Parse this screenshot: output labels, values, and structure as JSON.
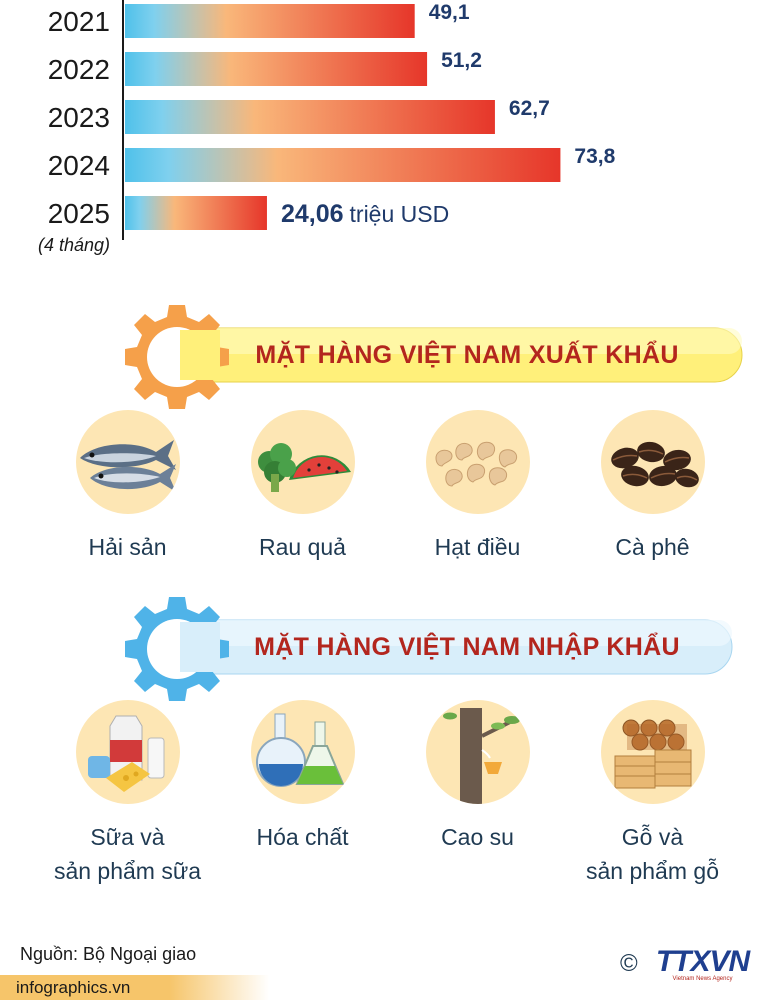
{
  "chart_data": {
    "type": "bar",
    "orientation": "horizontal",
    "categories": [
      "2021",
      "2022",
      "2023",
      "2024",
      "2025"
    ],
    "category_notes": [
      "",
      "",
      "",
      "",
      "(4 tháng)"
    ],
    "values": [
      49.1,
      51.2,
      62.7,
      73.8,
      24.06
    ],
    "value_labels": [
      "49,1",
      "51,2",
      "62,7",
      "73,8",
      "24,06"
    ],
    "unit_label": "triệu USD",
    "xlim": [
      0,
      100
    ],
    "grid": false,
    "colors": {
      "bar_start": "#4fc1ea",
      "bar_mid": "#f9b77a",
      "bar_end": "#e6362a",
      "label": "#1f3a6b"
    }
  },
  "export_section": {
    "title": "MẶT HÀNG VIỆT NAM XUẤT KHẨU",
    "gear_color": "#f5a04a",
    "banner_color": "#fff07a",
    "items": [
      {
        "label": "Hải sản",
        "icon": "fish-icon"
      },
      {
        "label": "Rau quả",
        "icon": "vegetable-fruit-icon"
      },
      {
        "label": "Hạt điều",
        "icon": "cashew-icon"
      },
      {
        "label": "Cà phê",
        "icon": "coffee-bean-icon"
      }
    ]
  },
  "import_section": {
    "title": "MẶT HÀNG VIỆT NAM NHẬP KHẨU",
    "gear_color": "#4fb3e8",
    "banner_color": "#d8eefa",
    "items": [
      {
        "label_line1": "Sữa và",
        "label_line2": "sản phẩm sữa",
        "icon": "milk-products-icon"
      },
      {
        "label_line1": "Hóa chất",
        "label_line2": "",
        "icon": "chemical-flask-icon"
      },
      {
        "label_line1": "Cao su",
        "label_line2": "",
        "icon": "rubber-tree-icon"
      },
      {
        "label_line1": "Gỗ và",
        "label_line2": "sản phẩm gỗ",
        "icon": "wood-logs-icon"
      }
    ]
  },
  "footer": {
    "source": "Nguồn: Bộ Ngoại giao",
    "site": "infographics.vn",
    "copyright": "©",
    "logo_text": "TTXVN",
    "logo_subtext": "Vietnam News Agency"
  }
}
